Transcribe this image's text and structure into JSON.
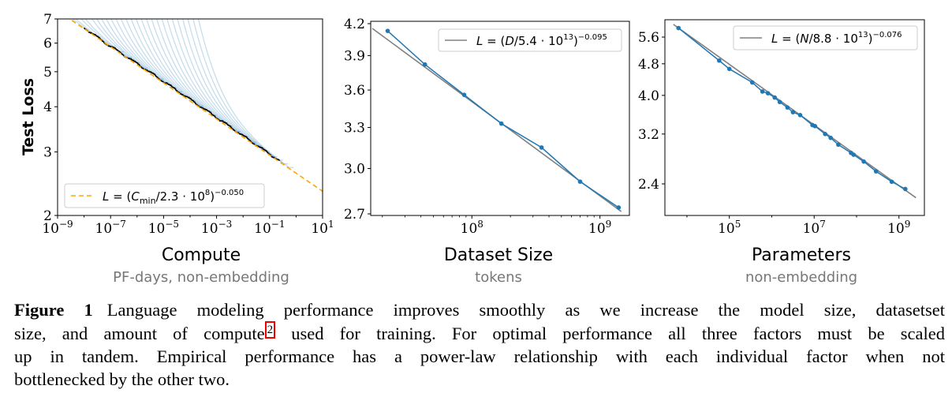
{
  "colors": {
    "run": "#1f77b4",
    "fit_compute": "#ffa500",
    "fit_gray": "#808080",
    "frontier": "#000000",
    "highlight": "#ee0000"
  },
  "panels": [
    {
      "title": "Compute",
      "subtitle": "PF-days, non-embedding",
      "ylabel": "Test Loss",
      "xticks": [
        {
          "base": "10",
          "exp": "−9"
        },
        {
          "base": "10",
          "exp": "−7"
        },
        {
          "base": "10",
          "exp": "−5"
        },
        {
          "base": "10",
          "exp": "−3"
        },
        {
          "base": "10",
          "exp": "−1"
        },
        {
          "base": "10",
          "exp": "1"
        }
      ],
      "yticks": [
        "2",
        "3",
        "4",
        "5",
        "6",
        "7"
      ],
      "legend": {
        "a": "L",
        "b": " = (",
        "c": "C",
        "sub": "min",
        "d": "/2.3 · 10",
        "sup1": "8",
        "e": ")",
        "sup2": "−0.050"
      }
    },
    {
      "title": "Dataset Size",
      "subtitle": "tokens",
      "xticks": [
        {
          "base": "10",
          "exp": "8"
        },
        {
          "base": "10",
          "exp": "9"
        }
      ],
      "yticks": [
        "2.7",
        "3.0",
        "3.3",
        "3.6",
        "3.9",
        "4.2"
      ],
      "legend": {
        "a": "L",
        "b": " = (",
        "c": "D",
        "d": "/5.4 · 10",
        "sup1": "13",
        "e": ")",
        "sup2": "−0.095"
      }
    },
    {
      "title": "Parameters",
      "subtitle": "non-embedding",
      "xticks": [
        {
          "base": "10",
          "exp": "5"
        },
        {
          "base": "10",
          "exp": "7"
        },
        {
          "base": "10",
          "exp": "9"
        }
      ],
      "yticks": [
        "2.4",
        "3.2",
        "4.0",
        "4.8",
        "5.6"
      ],
      "legend": {
        "a": "L",
        "b": " = (",
        "c": "N",
        "d": "/8.8 · 10",
        "sup1": "13",
        "e": ")",
        "sup2": "−0.076"
      }
    }
  ],
  "chart_data": [
    {
      "type": "line",
      "title": "Compute",
      "xlabel": "Compute (PF-days, non-embedding)",
      "ylabel": "Test Loss",
      "xscale": "log",
      "yscale": "log",
      "xlim": [
        1e-09,
        10
      ],
      "ylim": [
        2,
        7
      ],
      "fit": {
        "label": "L = (C_min/2.3·10^8)^−0.050",
        "scale": 230000000.0,
        "exponent": -0.05,
        "style": "dashed"
      },
      "runs_start_log10": [
        -9.0,
        -8.8,
        -8.5,
        -8.3,
        -8.0,
        -7.8,
        -7.6,
        -7.4,
        -7.2,
        -7.0,
        -6.8,
        -6.6,
        -6.4,
        -6.2,
        -6.0,
        -5.8,
        -5.6,
        -5.4,
        -5.2,
        -5.0,
        -4.8,
        -4.6,
        -4.4,
        -4.2,
        -4.0,
        -3.8
      ],
      "runs_end_log10": [
        -6.8,
        -6.5,
        -6.2,
        -5.9,
        -5.6,
        -5.3,
        -5.0,
        -4.8,
        -4.5,
        -4.3,
        -4.0,
        -3.8,
        -3.5,
        -3.2,
        -3.0,
        -2.7,
        -2.4,
        -2.1,
        -1.8,
        -1.5,
        -1.3,
        -1.0,
        -0.7,
        -0.5,
        -0.3,
        -0.1
      ],
      "legend_position": "lower-left"
    },
    {
      "type": "line",
      "title": "Dataset Size",
      "xlabel": "Dataset Size (tokens)",
      "xscale": "log",
      "yscale": "log",
      "ylim": [
        2.69,
        4.22
      ],
      "x": [
        22000000.0,
        43000000.0,
        87000000.0,
        170000000.0,
        350000000.0,
        700000000.0,
        1400000000.0
      ],
      "y": [
        4.13,
        3.82,
        3.56,
        3.33,
        3.15,
        2.91,
        2.74
      ],
      "fit": {
        "label": "L = (D/5.4·10^13)^−0.095",
        "scale": 54000000000000.0,
        "exponent": -0.095
      },
      "legend_position": "top-right"
    },
    {
      "type": "line",
      "title": "Parameters",
      "xlabel": "Parameters (non-embedding)",
      "xscale": "log",
      "yscale": "log",
      "ylim": [
        2.0,
        6.19
      ],
      "x_log10": [
        3.8,
        4.76,
        5.0,
        5.54,
        5.78,
        5.91,
        6.07,
        6.19,
        6.37,
        6.5,
        6.67,
        6.96,
        7.02,
        7.26,
        7.39,
        7.57,
        7.87,
        7.93,
        8.17,
        8.46,
        8.83,
        9.15
      ],
      "y": [
        5.9,
        4.89,
        4.66,
        4.31,
        4.09,
        4.05,
        3.95,
        3.85,
        3.73,
        3.63,
        3.57,
        3.37,
        3.35,
        3.2,
        3.13,
        3.01,
        2.87,
        2.84,
        2.73,
        2.58,
        2.43,
        2.33
      ],
      "fit": {
        "label": "L = (N/8.8·10^13)^−0.076",
        "scale": 88000000000000.0,
        "exponent": -0.076
      },
      "legend_position": "top-right"
    }
  ],
  "caption": {
    "label": "Figure 1",
    "line1": "Language modeling performance improves smoothly as we increase the model size, datasetset",
    "line2a": "size, and amount of compute",
    "footnote": "2",
    "line2b": " used for training.  For optimal performance all three factors must be scaled",
    "line3": "up in tandem.  Empirical performance has a power-law relationship with each individual factor when not",
    "line4": "bottlenecked by the other two."
  }
}
